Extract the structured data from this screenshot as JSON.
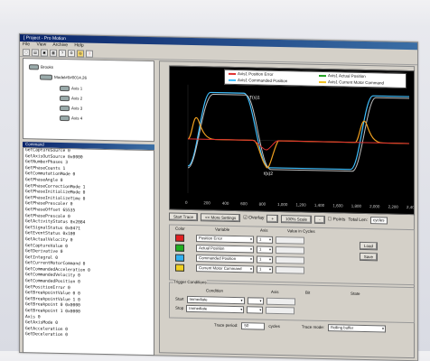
{
  "window": {
    "title": "[ Project - Pro Motion"
  },
  "menu": [
    "File",
    "View",
    "Archive",
    "Help"
  ],
  "toolbar_icons": [
    "new-icon",
    "open-icon",
    "save-icon",
    "print-icon",
    "help-icon",
    "tools-icon",
    "connect-icon",
    "stop-icon"
  ],
  "tree": {
    "root": "Brooks",
    "model": "Model#0#0014.26",
    "axes": [
      "Axis 1",
      "Axis 2",
      "Axis 3",
      "Axis 4"
    ]
  },
  "command": {
    "title": "Command",
    "lines": [
      "GetCaptureSource 0",
      "GetAxisOutSource 0x0000",
      "GetNumberPhases 3",
      "GetPhaseCounts 1",
      "GetCommutationMode 0",
      "GetPhaseAngle 0",
      "GetPhaseCorrectionMode 1",
      "GetPhaseInitializeMode 0",
      "GetPhaseInitializeTime 0",
      "GetPhasePrescaler 0",
      "GetPhaseOffset 65535",
      "GetPhasePrescale 0",
      "GetActivityStatus 0x2084",
      "GetSignalStatus 0x0471",
      "GetEventStatus 0x100",
      "GetActualVelocity 0",
      "GetCaptureValue 0",
      "GetDerivative 0",
      "GetIntegral 0",
      "GetCurrentMotorCommand 0",
      "GetCommandedAcceleration 0",
      "GetCommandedVelocity 0",
      "GetCommandedPosition 0",
      "GetPositionError 0",
      "GetBreakpointValue 0 0",
      "GetBreakpointValue 1 0",
      "GetBreakpoint 0 0x0000",
      "GetBreakpoint 1 0x0000",
      "Axis 0",
      "GetAxisMode 0",
      "GetAcceleration 0",
      "GetDeceleration 0"
    ]
  },
  "chart": {
    "legend": [
      {
        "label": "Axis1 Position Error",
        "color": "#e03030"
      },
      {
        "label": "Axis1 Actual Position",
        "color": "#20a020"
      },
      {
        "label": "Axis1 Commanded Position",
        "color": "#40c0ff"
      },
      {
        "label": "Axis1 Current Motor Command",
        "color": "#f0c020"
      }
    ],
    "annotations": [
      "T(s)1",
      "t(s)2"
    ],
    "x_tick_labels": [
      "0",
      "200",
      "400",
      "600",
      "800",
      "1,000",
      "1,200",
      "1,400",
      "1,600",
      "1,800",
      "2,000",
      "2,200",
      "2,400"
    ]
  },
  "controls": {
    "start_trace": "Start Trace",
    "more_settings": "<< More Settings",
    "overlay": "Overlay",
    "plus": "+",
    "edit_scale": "100% Scale",
    "minus": "-",
    "points": "Points",
    "total_len_label": "Total Len:",
    "total_len_value": "cycles"
  },
  "variables": {
    "col_color": "Color",
    "col_variable": "Variable",
    "col_axis": "Axis",
    "col_value": "Value in Cycles",
    "rows": [
      {
        "color": "#e02020",
        "name": "Position Error",
        "axis": "1"
      },
      {
        "color": "#20b020",
        "name": "Actual Position",
        "axis": "1"
      },
      {
        "color": "#30b0f0",
        "name": "Commanded Position",
        "axis": "1"
      },
      {
        "color": "#f0d020",
        "name": "Current Motor Command",
        "axis": "1"
      }
    ],
    "load_btn": "Load",
    "save_btn": "Save"
  },
  "trigger": {
    "title": "Trigger Conditions",
    "col_condition": "Condition",
    "col_axis": "Axis",
    "col_bit": "Bit",
    "col_state": "State",
    "start_label": "Start",
    "start_value": "Immediate",
    "stop_label": "Stop",
    "stop_value": "Immediate"
  },
  "bottom": {
    "trace_period_label": "Trace period:",
    "trace_period_value": "50",
    "trace_period_unit": "cycles",
    "trace_mode_label": "Trace mode:",
    "trace_mode_value": "Rolling buffer"
  }
}
